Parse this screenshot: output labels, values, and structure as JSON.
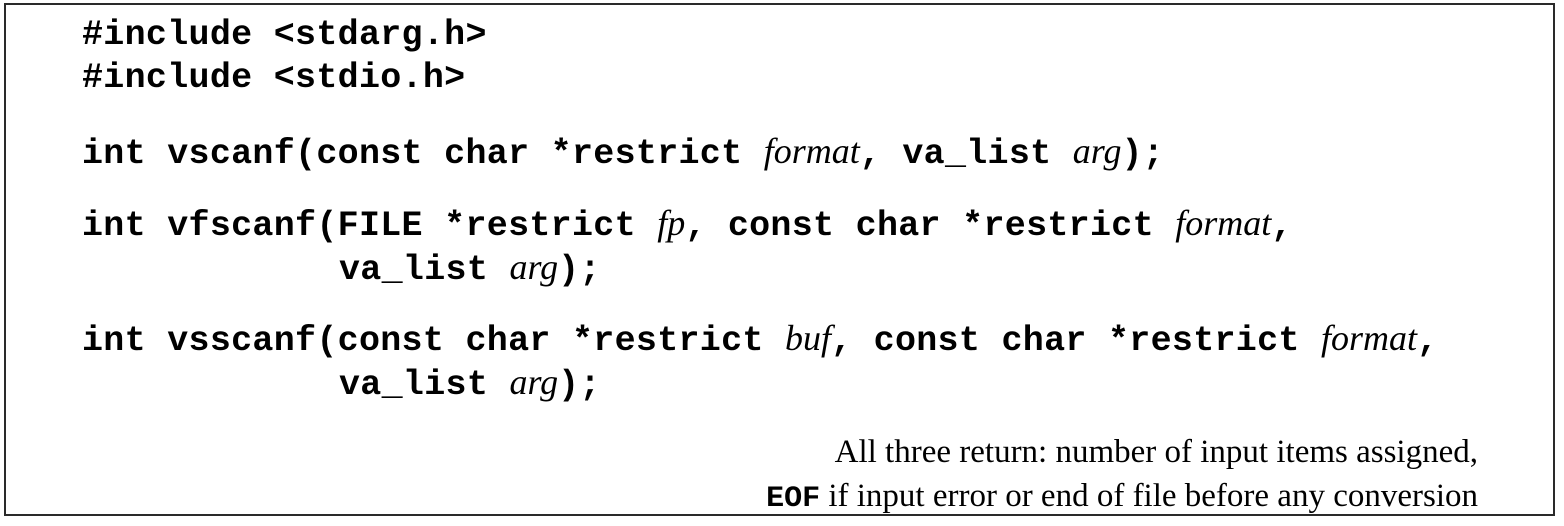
{
  "includes": [
    "#include <stdarg.h>",
    "#include <stdio.h>"
  ],
  "prototypes": {
    "vscanf": {
      "prefix": "int vscanf(const char *restrict ",
      "param1": "format",
      "mid": ", va_list ",
      "param2": "arg",
      "suffix": ");"
    },
    "vfscanf": {
      "prefix": "int vfscanf(FILE *restrict ",
      "param1": "fp",
      "mid": ", const char *restrict ",
      "param2": "format",
      "end": ",",
      "cont_prefix": "va_list ",
      "param3": "arg",
      "suffix": ");"
    },
    "vsscanf": {
      "prefix": "int vsscanf(const char *restrict ",
      "param1": "buf",
      "mid": ", const char *restrict ",
      "param2": "format",
      "end": ",",
      "cont_prefix": "va_list ",
      "param3": "arg",
      "suffix": ");"
    }
  },
  "returns": {
    "line1": "All three return: number of input items assigned,",
    "eof_keyword": "EOF",
    "line2_rest": " if input error or end of file before any conversion"
  }
}
